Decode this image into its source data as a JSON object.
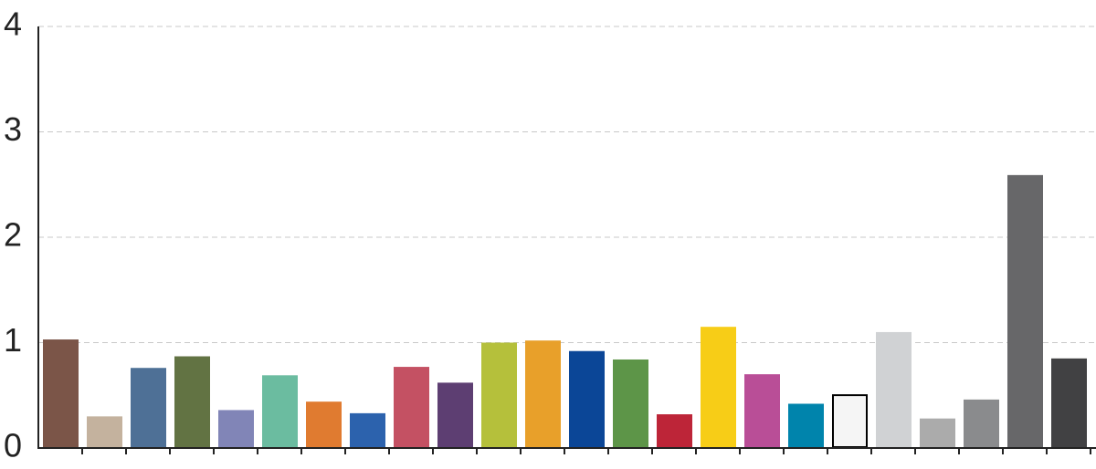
{
  "chart_data": {
    "type": "bar",
    "categories": [
      null,
      null,
      null,
      null,
      null,
      null,
      null,
      null,
      null,
      null,
      null,
      null,
      null,
      null,
      null,
      null,
      null,
      null,
      null,
      null,
      null,
      null,
      null,
      null
    ],
    "values": [
      1.03,
      0.3,
      0.76,
      0.87,
      0.36,
      0.69,
      0.44,
      0.33,
      0.77,
      0.62,
      1.0,
      1.02,
      0.92,
      0.84,
      0.32,
      1.15,
      0.7,
      0.42,
      0.51,
      1.1,
      0.28,
      0.46,
      2.59,
      0.85
    ],
    "colors": [
      "#7b5548",
      "#c4b29e",
      "#4e7096",
      "#627343",
      "#8185b7",
      "#6bbca0",
      "#e07b30",
      "#2c62ad",
      "#c45163",
      "#5d3e72",
      "#b5c03b",
      "#e8a02a",
      "#0b4697",
      "#5d9548",
      "#bd2538",
      "#f7cd17",
      "#b94e97",
      "#0084ac",
      "#f5f5f5",
      "#d0d2d4",
      "#ababab",
      "#8a8b8d",
      "#676769",
      "#414143"
    ],
    "edgecolors": [
      "#7b5548",
      "#c4b29e",
      "#4e7096",
      "#627343",
      "#8185b7",
      "#6bbca0",
      "#e07b30",
      "#2c62ad",
      "#c45163",
      "#5d3e72",
      "#b5c03b",
      "#e8a02a",
      "#0b4697",
      "#5d9548",
      "#bd2538",
      "#f7cd17",
      "#b94e97",
      "#0084ac",
      "#000000",
      "#d0d2d4",
      "#ababab",
      "#8a8b8d",
      "#676769",
      "#414143"
    ],
    "ylim": [
      0,
      4
    ],
    "yticks": [
      0,
      1,
      2,
      3,
      4
    ],
    "grid": true
  }
}
